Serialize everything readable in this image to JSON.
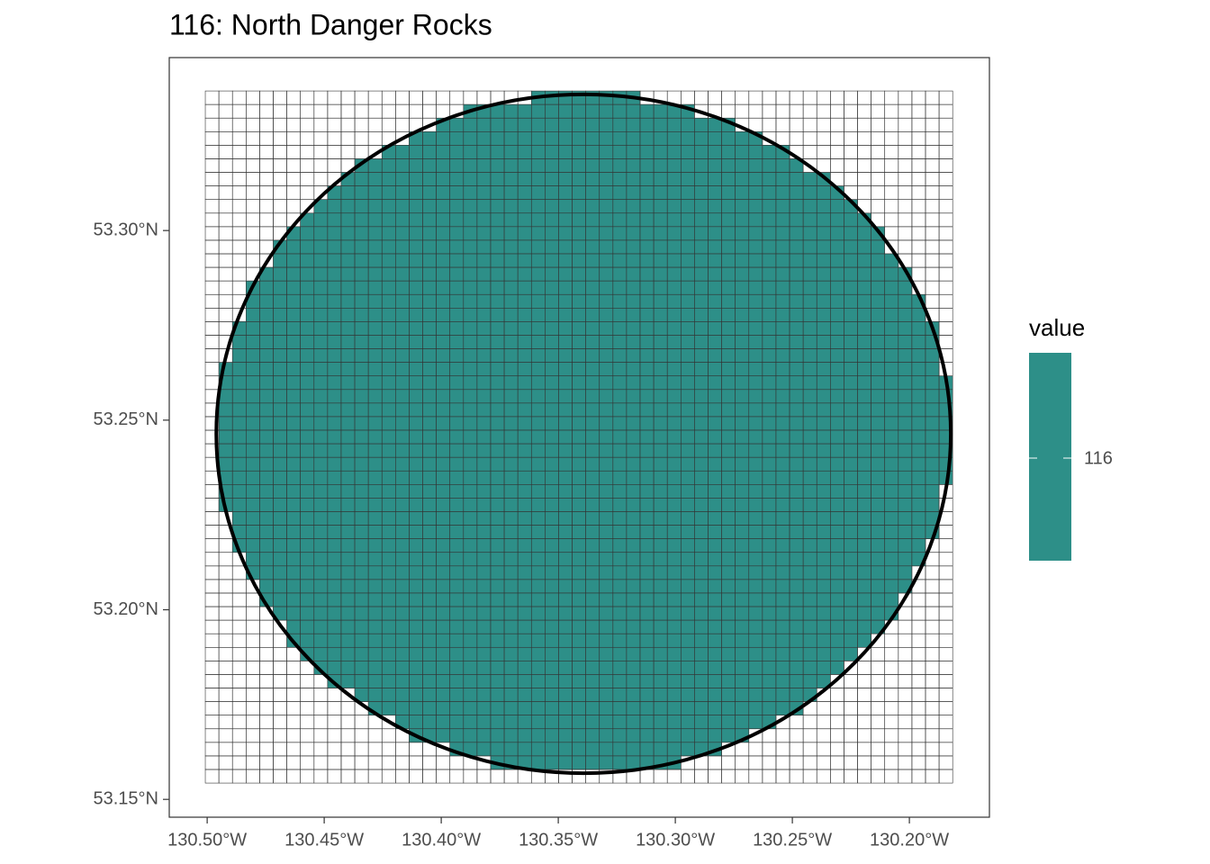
{
  "chart_data": {
    "type": "raster",
    "title": "116: North Danger Rocks",
    "value": 116,
    "color": "#2d8f88",
    "legend_title": "value",
    "grid_extent": {
      "xmin": -130.5008,
      "xmax": -130.1815,
      "ymin": 53.1543,
      "ymax": 53.3368,
      "ncols": 55,
      "nrows": 51
    },
    "buffer": {
      "center": [
        -130.3392,
        53.2464
      ],
      "radius_lon": 0.1569,
      "radius_lat": 0.0895
    },
    "xlim": [
      -130.5162,
      -130.1658
    ],
    "ylim": [
      53.1453,
      53.3456
    ],
    "xticks": [
      {
        "value": -130.5,
        "label": "130.50°W"
      },
      {
        "value": -130.45,
        "label": "130.45°W"
      },
      {
        "value": -130.4,
        "label": "130.40°W"
      },
      {
        "value": -130.35,
        "label": "130.35°W"
      },
      {
        "value": -130.3,
        "label": "130.30°W"
      },
      {
        "value": -130.25,
        "label": "130.25°W"
      },
      {
        "value": -130.2,
        "label": "130.20°W"
      }
    ],
    "yticks": [
      {
        "value": 53.15,
        "label": "53.15°N"
      },
      {
        "value": 53.2,
        "label": "53.20°N"
      },
      {
        "value": 53.25,
        "label": "53.25°N"
      },
      {
        "value": 53.3,
        "label": "53.30°N"
      }
    ]
  }
}
